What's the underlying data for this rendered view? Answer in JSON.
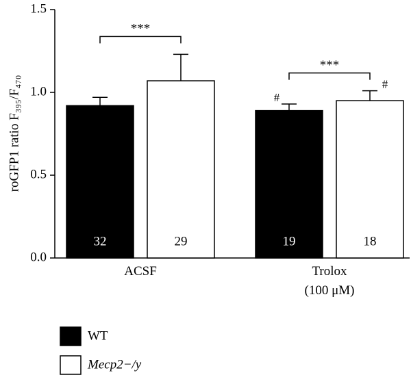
{
  "chart_data": {
    "type": "bar",
    "y_label": "roGFP1 ratio F₃₉₅/F₄₇₀",
    "categories": [
      "ACSF",
      "Trolox\n(100 μM)"
    ],
    "series": [
      {
        "name": "WT",
        "color": "#000000",
        "values": [
          0.92,
          0.89
        ],
        "errors": [
          0.05,
          0.04
        ],
        "n_labels": [
          "32",
          "19"
        ],
        "marker_labels": [
          null,
          "#"
        ]
      },
      {
        "name": "Mecp2−/y",
        "color": "#ffffff",
        "values": [
          1.07,
          0.95
        ],
        "errors": [
          0.16,
          0.06
        ],
        "n_labels": [
          "29",
          "18"
        ],
        "marker_labels": [
          null,
          "#"
        ]
      }
    ],
    "significance": [
      "***",
      "***"
    ],
    "ylim": [
      0,
      1.5
    ],
    "yticks": [
      {
        "value": 0,
        "label": "0.0"
      },
      0.5,
      {
        "value": 1,
        "label": "1.0"
      },
      1.5
    ]
  }
}
